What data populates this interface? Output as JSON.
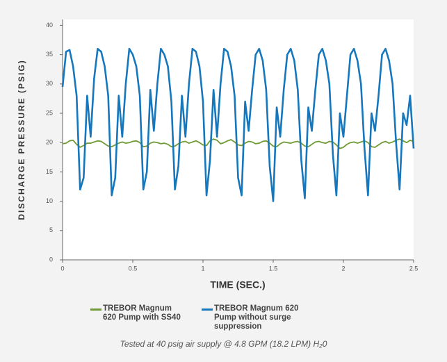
{
  "chart_data": {
    "type": "line",
    "y_label": "DISCHARGE PRESSURE (PSIG)",
    "x_label": "TIME (SEC.)",
    "note": "Tested at 40 psig air supply @ 4.8 GPM (18.2 LPM) H₂0",
    "xlim": [
      0,
      2.5
    ],
    "ylim": [
      0,
      41
    ],
    "xticks": [
      0,
      0.5,
      1,
      1.5,
      2,
      2.5
    ],
    "yticks": [
      0,
      5,
      10,
      15,
      20,
      25,
      30,
      35,
      40
    ],
    "x": [
      0,
      0.025,
      0.05,
      0.075,
      0.1,
      0.125,
      0.15,
      0.175,
      0.2,
      0.225,
      0.25,
      0.275,
      0.3,
      0.325,
      0.35,
      0.375,
      0.4,
      0.425,
      0.45,
      0.475,
      0.5,
      0.525,
      0.55,
      0.575,
      0.6,
      0.625,
      0.65,
      0.675,
      0.7,
      0.725,
      0.75,
      0.775,
      0.8,
      0.825,
      0.85,
      0.875,
      0.9,
      0.925,
      0.95,
      0.975,
      1,
      1.025,
      1.05,
      1.075,
      1.1,
      1.125,
      1.15,
      1.175,
      1.2,
      1.225,
      1.25,
      1.275,
      1.3,
      1.325,
      1.35,
      1.375,
      1.4,
      1.425,
      1.45,
      1.475,
      1.5,
      1.525,
      1.55,
      1.575,
      1.6,
      1.625,
      1.65,
      1.675,
      1.7,
      1.725,
      1.75,
      1.775,
      1.8,
      1.825,
      1.85,
      1.875,
      1.9,
      1.925,
      1.95,
      1.975,
      2,
      2.025,
      2.05,
      2.075,
      2.1,
      2.125,
      2.15,
      2.175,
      2.2,
      2.225,
      2.25,
      2.275,
      2.3,
      2.325,
      2.35,
      2.375,
      2.4,
      2.425,
      2.45,
      2.475,
      2.5
    ],
    "series": [
      {
        "name": "TREBOR Magnum 620 Pump with SS40",
        "color": "#6f9a35",
        "values": [
          19.8,
          19.9,
          20.3,
          20.4,
          19.7,
          19.2,
          19.5,
          19.9,
          19.9,
          20.1,
          20.3,
          20.2,
          19.8,
          19.4,
          19.3,
          19.6,
          19.9,
          20.1,
          19.9,
          20.0,
          20.2,
          20.3,
          20.0,
          19.3,
          19.4,
          19.9,
          20.1,
          20.0,
          19.8,
          19.9,
          19.7,
          19.3,
          19.4,
          19.8,
          20.1,
          20.2,
          19.9,
          20.1,
          20.3,
          20.0,
          19.6,
          19.5,
          20.3,
          20.6,
          20.4,
          19.8,
          20.0,
          20.3,
          20.5,
          20.1,
          19.6,
          19.5,
          19.9,
          20.2,
          20.1,
          19.8,
          19.9,
          20.2,
          20.3,
          19.9,
          19.4,
          19.3,
          19.8,
          20.1,
          20.0,
          19.9,
          20.1,
          20.2,
          19.9,
          19.4,
          19.3,
          19.7,
          20.1,
          20.2,
          20.0,
          19.9,
          20.2,
          20.1,
          19.6,
          19.0,
          19.2,
          19.7,
          20.0,
          20.1,
          19.9,
          20.1,
          20.3,
          20.0,
          19.3,
          19.2,
          19.6,
          20.0,
          20.2,
          19.9,
          20.1,
          20.4,
          20.6,
          20.3,
          20.0,
          20.4,
          20.2
        ]
      },
      {
        "name": "TREBOR Magnum 620 Pump without surge suppression",
        "color": "#1677bd",
        "values": [
          29.5,
          35.5,
          35.8,
          33,
          28,
          12,
          14,
          28,
          21,
          31,
          36,
          35.5,
          33,
          28,
          11,
          14,
          28,
          21,
          30,
          36,
          35,
          33,
          28,
          12,
          15,
          29,
          22,
          30,
          36,
          35,
          33,
          27,
          12,
          16,
          28,
          21,
          30,
          36,
          35.5,
          33,
          27,
          11,
          17,
          29,
          21,
          30,
          36,
          35.5,
          33,
          28,
          14,
          11,
          27,
          22,
          29,
          35,
          36,
          34,
          29,
          16,
          10,
          26,
          21,
          29,
          35,
          36,
          34,
          29,
          17,
          10.5,
          26,
          22,
          29,
          35,
          36,
          34,
          30,
          18,
          11,
          25,
          21,
          28,
          35,
          36,
          34,
          30,
          19,
          11,
          25,
          22,
          28,
          35,
          36,
          34,
          30,
          20,
          12,
          25,
          23,
          28,
          19
        ]
      }
    ]
  }
}
